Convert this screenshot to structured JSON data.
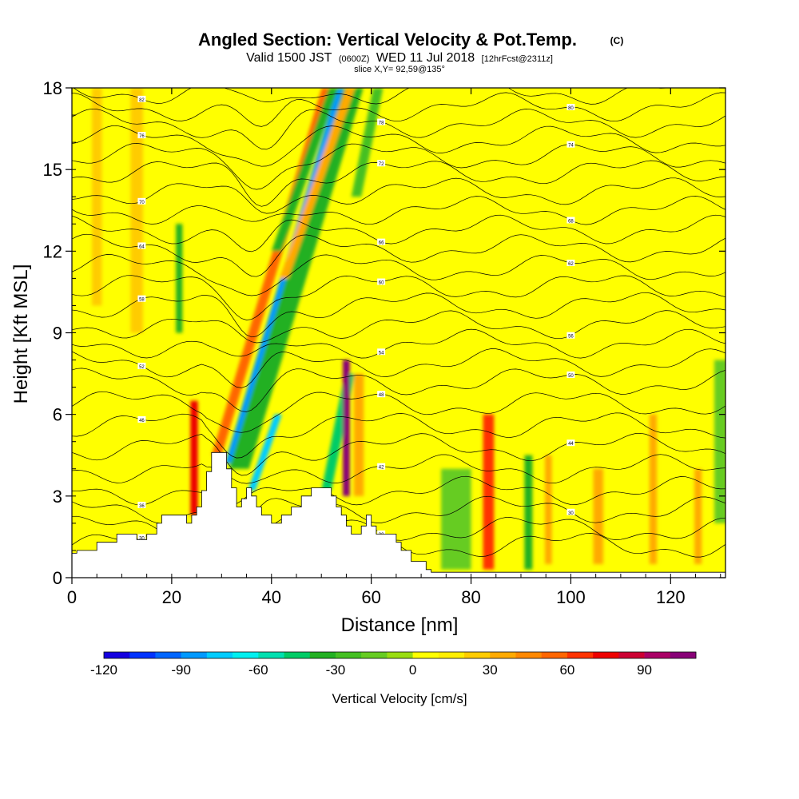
{
  "title": {
    "main": "Angled Section: Vertical Velocity & Pot.Temp.",
    "main_suffix": "(C)",
    "valid_prefix": "Valid 1500 JST",
    "valid_zulu": "(0600Z)",
    "valid_date": "WED 11 Jul 2018",
    "forecast": "[12hrFcst@2311z]",
    "slice": "slice X,Y= 92,59@135°"
  },
  "chart_data": {
    "type": "heatmap",
    "xlabel": "Distance [nm]",
    "ylabel": "Height [Kft MSL]",
    "xlim": [
      0,
      131
    ],
    "ylim": [
      0,
      18
    ],
    "x_ticks": [
      0,
      20,
      40,
      60,
      80,
      100,
      120
    ],
    "y_ticks": [
      0,
      3,
      6,
      9,
      12,
      15,
      18
    ],
    "background_value": 8,
    "colorbar": {
      "label": "Vertical Velocity [cm/s]",
      "min": -120,
      "max": 110,
      "step": 10,
      "tick_values": [
        -120,
        -90,
        -60,
        -30,
        0,
        30,
        60,
        90
      ],
      "colors": [
        "#1500e0",
        "#0033ff",
        "#0066ff",
        "#0099ff",
        "#00ccff",
        "#00f0f0",
        "#00e0b0",
        "#00cc66",
        "#22b022",
        "#44c022",
        "#66cc22",
        "#99dd11",
        "#ffff00",
        "#ffee00",
        "#ffcc00",
        "#ffaa00",
        "#ff8800",
        "#ff6600",
        "#ff3300",
        "#ee0000",
        "#cc0033",
        "#aa0066",
        "#880077"
      ]
    },
    "updraft_downdraft_features": [
      {
        "x": 31.5,
        "y_bottom": 4.2,
        "y_top": 18,
        "width": 1.7,
        "value": -90,
        "tilt": -0.3
      },
      {
        "x": 33.5,
        "y_bottom": 4.0,
        "y_top": 18,
        "width": 4.0,
        "value": -35,
        "tilt": -0.3
      },
      {
        "x": 29.0,
        "y_bottom": 4.5,
        "y_top": 18,
        "width": 2.0,
        "value": 55,
        "tilt": -0.3
      },
      {
        "x": 36.0,
        "y_bottom": 3.2,
        "y_top": 6.0,
        "width": 1.5,
        "value": -80,
        "tilt": -0.35
      },
      {
        "x": 24.5,
        "y_bottom": 2.3,
        "y_top": 6.5,
        "width": 1.5,
        "value": 70,
        "tilt": 0
      },
      {
        "x": 21.5,
        "y_bottom": 9.0,
        "y_top": 13.0,
        "width": 1.3,
        "value": -35,
        "tilt": 0
      },
      {
        "x": 41.0,
        "y_bottom": 12.0,
        "y_top": 18,
        "width": 2.0,
        "value": -40,
        "tilt": -0.35
      },
      {
        "x": 42.5,
        "y_bottom": 11.0,
        "y_top": 18,
        "width": 1.8,
        "value": 35,
        "tilt": -0.35
      },
      {
        "x": 51.0,
        "y_bottom": 3.2,
        "y_top": 7.5,
        "width": 2.0,
        "value": -45,
        "tilt": -0.2
      },
      {
        "x": 55.0,
        "y_bottom": 3.0,
        "y_top": 8.0,
        "width": 1.4,
        "value": 100,
        "tilt": 0
      },
      {
        "x": 57.5,
        "y_bottom": 3.0,
        "y_top": 7.5,
        "width": 2.0,
        "value": 30,
        "tilt": 0
      },
      {
        "x": 57.0,
        "y_bottom": 14.0,
        "y_top": 18,
        "width": 2.0,
        "value": -25,
        "tilt": -0.2
      },
      {
        "x": 83.5,
        "y_bottom": 0.3,
        "y_top": 6.0,
        "width": 2.2,
        "value": 65,
        "tilt": 0
      },
      {
        "x": 91.5,
        "y_bottom": 0.3,
        "y_top": 4.5,
        "width": 1.6,
        "value": -40,
        "tilt": 0
      },
      {
        "x": 77.0,
        "y_bottom": 0.3,
        "y_top": 4.0,
        "width": 6.0,
        "value": -20,
        "tilt": 0
      },
      {
        "x": 95.5,
        "y_bottom": 0.5,
        "y_top": 4.5,
        "width": 1.4,
        "value": 30,
        "tilt": 0
      },
      {
        "x": 105.5,
        "y_bottom": 0.5,
        "y_top": 4.0,
        "width": 2.0,
        "value": 30,
        "tilt": 0
      },
      {
        "x": 116.5,
        "y_bottom": 0.5,
        "y_top": 6.0,
        "width": 1.5,
        "value": 30,
        "tilt": 0
      },
      {
        "x": 125.5,
        "y_bottom": 0.5,
        "y_top": 4.0,
        "width": 1.5,
        "value": 30,
        "tilt": 0
      },
      {
        "x": 130.0,
        "y_bottom": 2.0,
        "y_top": 8.0,
        "width": 2.5,
        "value": -15,
        "tilt": 0
      },
      {
        "x": 13.0,
        "y_bottom": 9.0,
        "y_top": 18,
        "width": 2.5,
        "value": 20,
        "tilt": 0
      },
      {
        "x": 5.0,
        "y_bottom": 10.0,
        "y_top": 18,
        "width": 2.0,
        "value": 20,
        "tilt": 0
      }
    ],
    "terrain_heights_kft": [
      [
        0,
        0.9
      ],
      [
        1,
        0.9
      ],
      [
        1,
        1.0
      ],
      [
        5,
        1.0
      ],
      [
        5,
        1.3
      ],
      [
        9,
        1.3
      ],
      [
        9,
        1.6
      ],
      [
        13,
        1.6
      ],
      [
        13,
        1.4
      ],
      [
        15,
        1.4
      ],
      [
        15,
        1.6
      ],
      [
        17,
        1.6
      ],
      [
        17,
        2.0
      ],
      [
        18,
        2.0
      ],
      [
        18,
        2.3
      ],
      [
        23,
        2.3
      ],
      [
        23,
        2.0
      ],
      [
        24,
        2.0
      ],
      [
        24,
        2.3
      ],
      [
        25,
        2.3
      ],
      [
        25,
        2.6
      ],
      [
        26,
        2.6
      ],
      [
        26,
        3.2
      ],
      [
        27,
        3.2
      ],
      [
        27,
        3.9
      ],
      [
        28,
        3.9
      ],
      [
        28,
        4.6
      ],
      [
        31,
        4.6
      ],
      [
        31,
        4.0
      ],
      [
        32,
        4.0
      ],
      [
        32,
        3.3
      ],
      [
        33,
        3.3
      ],
      [
        33,
        2.6
      ],
      [
        34,
        2.6
      ],
      [
        34,
        2.9
      ],
      [
        35,
        2.9
      ],
      [
        35,
        3.3
      ],
      [
        36,
        3.3
      ],
      [
        36,
        3.0
      ],
      [
        37,
        3.0
      ],
      [
        37,
        2.6
      ],
      [
        38,
        2.6
      ],
      [
        38,
        2.3
      ],
      [
        40,
        2.3
      ],
      [
        40,
        2.0
      ],
      [
        42,
        2.0
      ],
      [
        42,
        2.3
      ],
      [
        44,
        2.3
      ],
      [
        44,
        2.6
      ],
      [
        46,
        2.6
      ],
      [
        46,
        3.0
      ],
      [
        48,
        3.0
      ],
      [
        48,
        3.3
      ],
      [
        52,
        3.3
      ],
      [
        52,
        3.0
      ],
      [
        53,
        3.0
      ],
      [
        53,
        2.6
      ],
      [
        54,
        2.6
      ],
      [
        54,
        2.3
      ],
      [
        55,
        2.3
      ],
      [
        55,
        1.9
      ],
      [
        56,
        1.9
      ],
      [
        56,
        1.6
      ],
      [
        58,
        1.6
      ],
      [
        58,
        1.9
      ],
      [
        59,
        1.9
      ],
      [
        59,
        2.3
      ],
      [
        60,
        2.3
      ],
      [
        60,
        1.9
      ],
      [
        61,
        1.9
      ],
      [
        61,
        1.6
      ],
      [
        65,
        1.6
      ],
      [
        65,
        1.3
      ],
      [
        66,
        1.3
      ],
      [
        66,
        1.0
      ],
      [
        68,
        1.0
      ],
      [
        68,
        0.6
      ],
      [
        71,
        0.6
      ],
      [
        71,
        0.3
      ],
      [
        72,
        0.3
      ],
      [
        72,
        0.2
      ],
      [
        131,
        0.2
      ]
    ],
    "contour_base_kft": [
      1.2,
      1.8,
      2.5,
      3.2,
      4.0,
      4.8,
      5.6,
      6.4,
      7.2,
      7.9,
      8.6,
      9.3,
      10.0,
      10.7,
      11.4,
      12.1,
      12.8,
      13.5,
      14.2,
      14.9,
      15.5,
      16.1,
      16.7,
      17.3,
      17.9
    ],
    "contour_labels": [
      "30",
      "30",
      "30",
      "36",
      "42",
      "44",
      "46",
      "48",
      "50",
      "52",
      "54",
      "56",
      "58",
      "60",
      "62",
      "64",
      "66",
      "68",
      "70",
      "72",
      "74",
      "76",
      "78",
      "80",
      "82"
    ]
  }
}
